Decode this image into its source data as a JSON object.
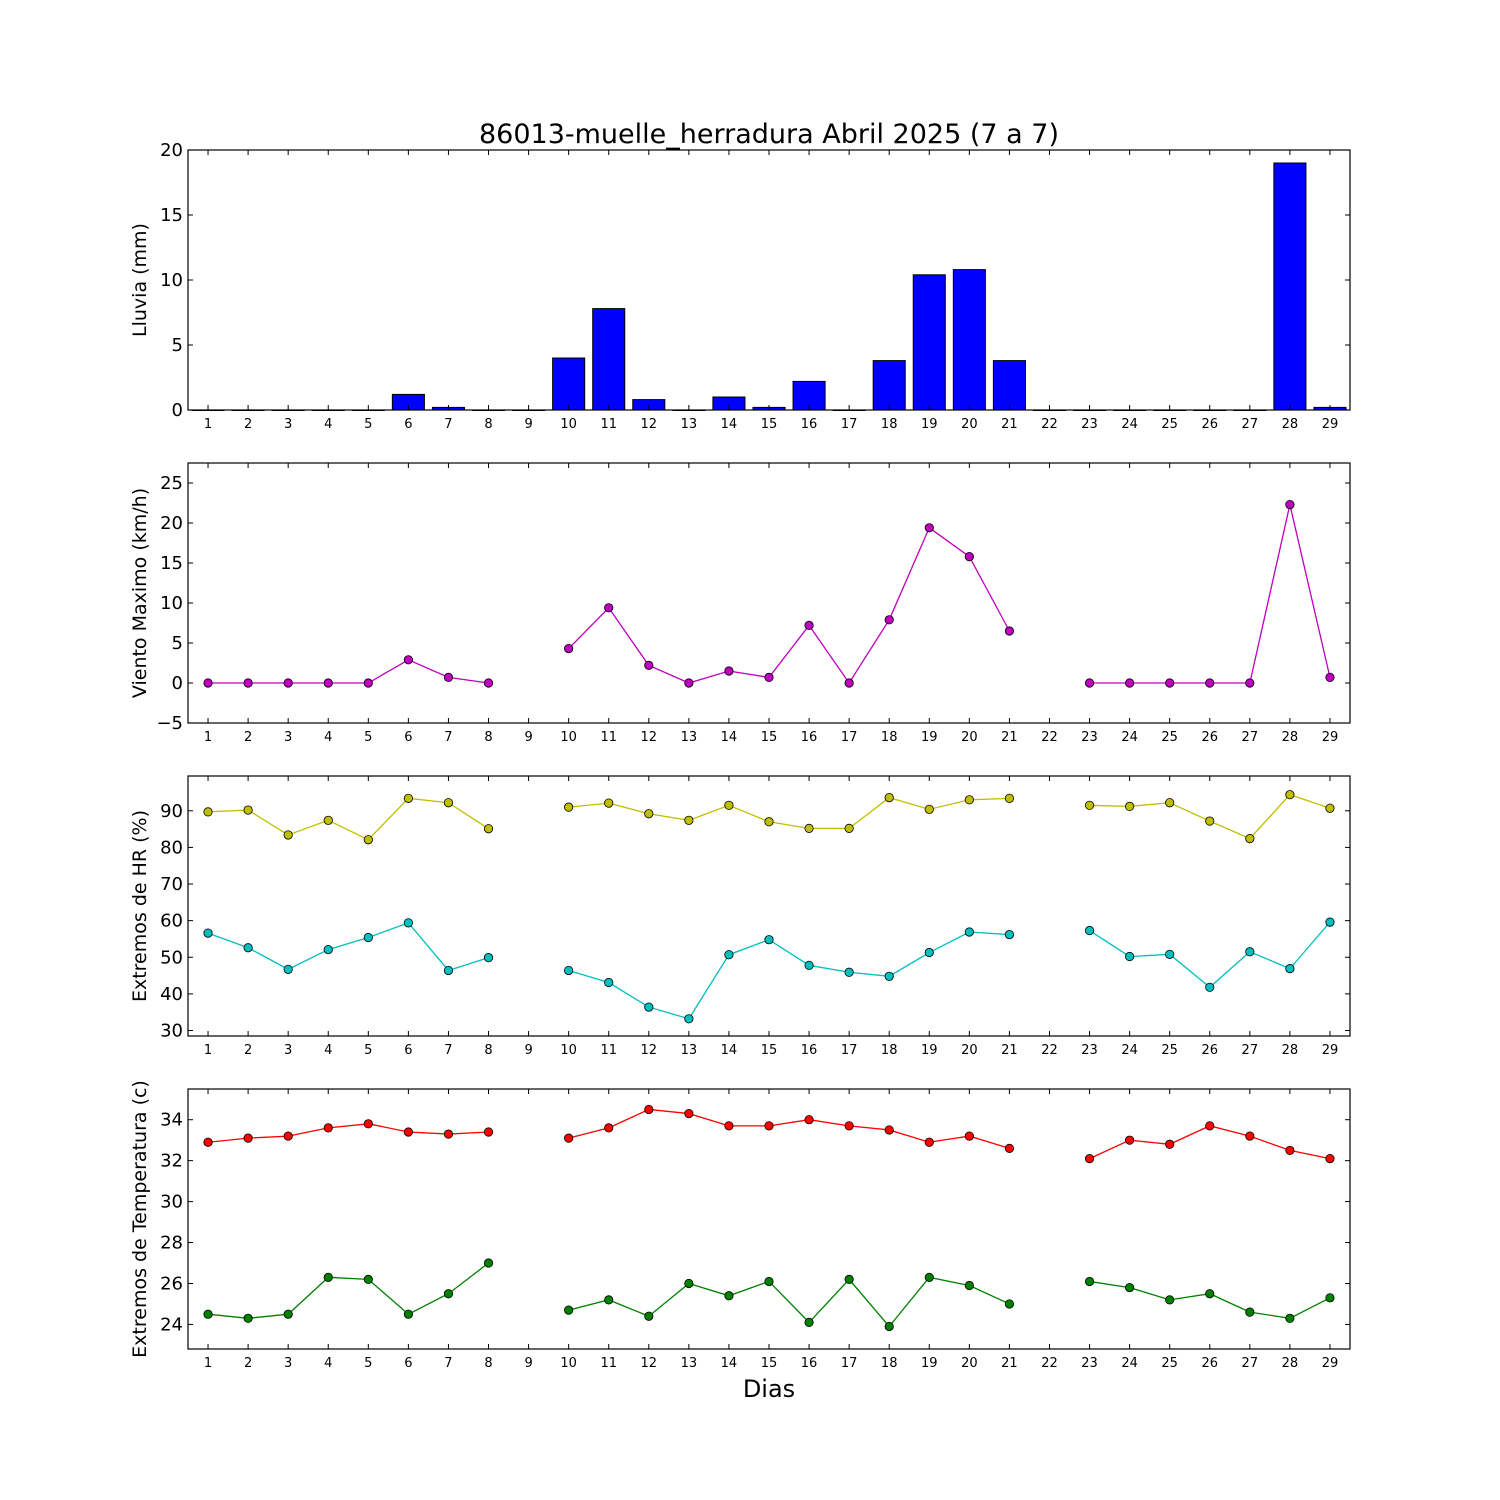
{
  "chart_data": {
    "type": "multi-panel",
    "title": "86013-muelle_herradura Abril 2025  (7 a 7)",
    "xlabel": "Dias",
    "x": [
      1,
      2,
      3,
      4,
      5,
      6,
      7,
      8,
      9,
      10,
      11,
      12,
      13,
      14,
      15,
      16,
      17,
      18,
      19,
      20,
      21,
      22,
      23,
      24,
      25,
      26,
      27,
      28,
      29
    ],
    "panels": [
      {
        "type": "bar",
        "ylabel": "Lluvia (mm)",
        "ylim": [
          0,
          20
        ],
        "yticks": [
          0,
          5,
          10,
          15,
          20
        ],
        "series": [
          {
            "color": "#0000ff",
            "values": [
              0,
              0,
              0,
              0,
              0,
              1.2,
              0.2,
              0,
              0,
              4.0,
              7.8,
              0.8,
              0,
              1.0,
              0.2,
              2.2,
              0,
              3.8,
              10.4,
              10.8,
              3.8,
              0,
              0,
              0,
              0,
              0,
              0,
              19.0,
              0.2
            ]
          }
        ]
      },
      {
        "type": "line",
        "ylabel": "Viento Maximo (km/h)",
        "ylim": [
          -5,
          27.5
        ],
        "yticks": [
          -5,
          0,
          5,
          10,
          15,
          20,
          25
        ],
        "series": [
          {
            "color": "#bf00bf",
            "values": [
              0,
              0,
              0,
              0,
              0,
              2.9,
              0.7,
              0,
              null,
              4.3,
              9.4,
              2.2,
              0,
              1.5,
              0.7,
              7.2,
              0,
              7.9,
              19.4,
              15.8,
              6.5,
              null,
              0,
              0,
              0,
              0,
              0,
              22.3,
              0.7
            ]
          }
        ]
      },
      {
        "type": "line",
        "ylabel": "Extremos de HR (%)",
        "ylim": [
          28.5,
          99.5
        ],
        "yticks": [
          30,
          40,
          50,
          60,
          70,
          80,
          90
        ],
        "series": [
          {
            "color": "#bfbf00",
            "values": [
              89.7,
              90.2,
              83.4,
              87.4,
              82.1,
              93.4,
              92.2,
              85.1,
              null,
              91.0,
              92.1,
              89.2,
              87.4,
              91.5,
              87.0,
              85.2,
              85.2,
              93.6,
              90.4,
              93.0,
              93.4,
              null,
              91.5,
              91.2,
              92.2,
              87.2,
              82.4,
              94.4,
              90.7
            ]
          },
          {
            "color": "#00bfbf",
            "values": [
              56.6,
              52.6,
              46.7,
              52.1,
              55.4,
              59.4,
              46.4,
              49.9,
              null,
              46.4,
              43.1,
              36.4,
              33.2,
              50.7,
              54.8,
              47.8,
              45.9,
              44.8,
              51.3,
              56.9,
              56.2,
              null,
              57.3,
              50.2,
              50.8,
              41.8,
              51.5,
              46.9,
              59.6
            ]
          }
        ]
      },
      {
        "type": "line",
        "ylabel": "Extremos de Temperatura (c)",
        "ylim": [
          22.8,
          35.5
        ],
        "yticks": [
          24,
          26,
          28,
          30,
          32,
          34
        ],
        "series": [
          {
            "color": "#ff0000",
            "values": [
              32.9,
              33.1,
              33.2,
              33.6,
              33.8,
              33.4,
              33.3,
              33.4,
              null,
              33.1,
              33.6,
              34.5,
              34.3,
              33.7,
              33.7,
              34.0,
              33.7,
              33.5,
              32.9,
              33.2,
              32.6,
              null,
              32.1,
              33.0,
              32.8,
              33.7,
              33.2,
              32.5,
              32.1
            ]
          },
          {
            "color": "#008000",
            "values": [
              24.5,
              24.3,
              24.5,
              26.3,
              26.2,
              24.5,
              25.5,
              27.0,
              null,
              24.7,
              25.2,
              24.4,
              26.0,
              25.4,
              26.1,
              24.1,
              26.2,
              23.9,
              26.3,
              25.9,
              25.0,
              null,
              26.1,
              25.8,
              25.2,
              25.5,
              24.6,
              24.3,
              25.3
            ]
          }
        ]
      }
    ]
  }
}
